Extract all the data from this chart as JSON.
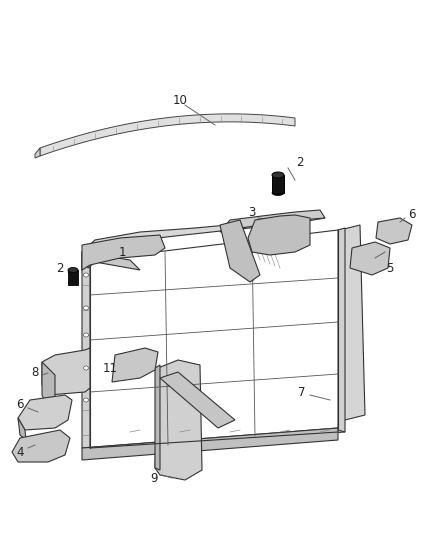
{
  "background_color": "#ffffff",
  "fig_width": 4.38,
  "fig_height": 5.33,
  "dpi": 100,
  "lc": "#333333",
  "lc_thin": "#555555",
  "lc_label": "#555555",
  "label_fs": 8.5
}
